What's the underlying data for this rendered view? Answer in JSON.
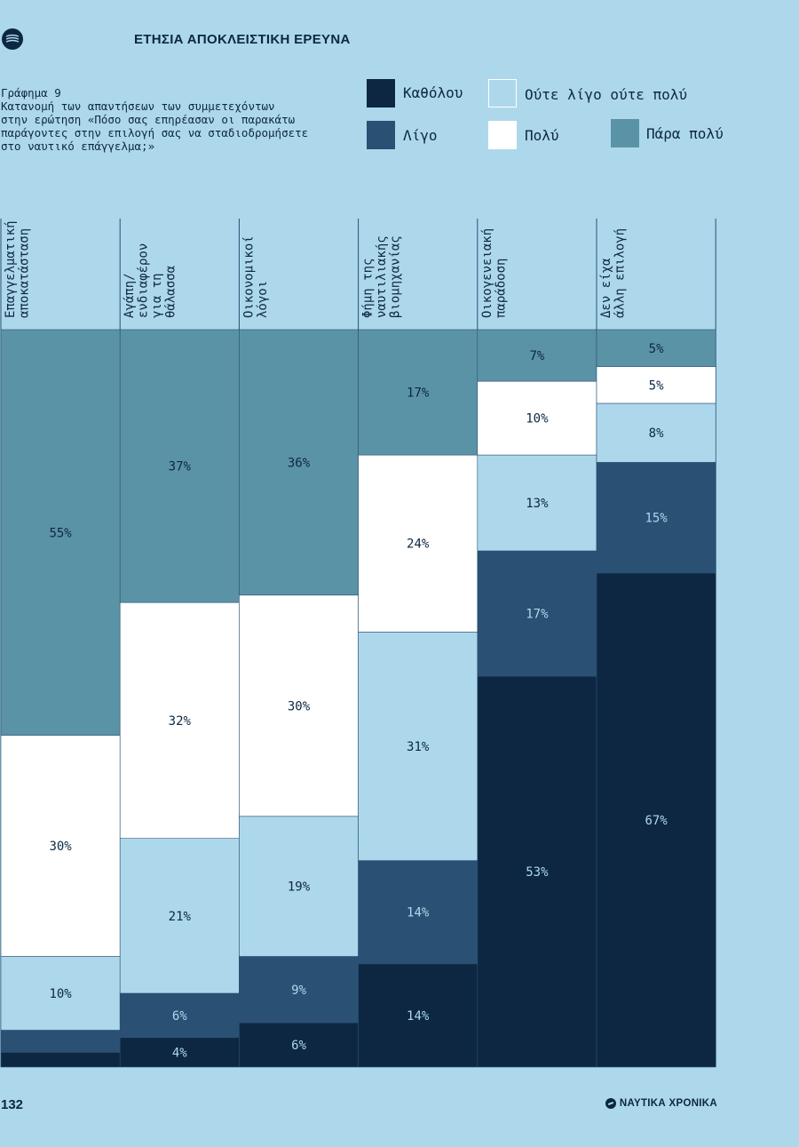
{
  "header": {
    "title": "ΕΤΗΣΙΑ ΑΠΟΚΛΕΙΣΤΙΚΗ ΕΡΕΥΝΑ",
    "logo_icon": "ship-wave-logo-icon"
  },
  "caption": {
    "figure_label": "Γράφημα 9",
    "text": "Κατανομή των απαντήσεων των συμμετεχόντων\nστην ερώτηση «Πόσο σας επηρέασαν οι παρακάτω\nπαράγοντες στην επιλογή σας να σταδιοδρομήσετε\nστο ναυτικό επάγγελμα;»"
  },
  "legend": [
    {
      "label": "Καθόλου",
      "color": "#0d2742"
    },
    {
      "label": "Λίγο",
      "color": "#2a5173"
    },
    {
      "label": "Ούτε λίγο ούτε πολύ",
      "color": "#add8ec"
    },
    {
      "label": "Πολύ",
      "color": "#ffffff"
    },
    {
      "label": "Πάρα πολύ",
      "color": "#5b93a6"
    }
  ],
  "chart_data": {
    "type": "bar",
    "stacked": true,
    "percent": true,
    "title": "Γράφημα 9",
    "categories": [
      "Επαγγελματική\nαποκατάσταση",
      "Αγάπη/\nενδιαφέρον\nγια τη\nθάλασσα",
      "Οικονομικοί\nλόγοι",
      "Φήμη της\nναυτιλιακής\nβιομηχανίας",
      "Οικογενειακή\nπαράδοση",
      "Δεν είχα\nάλλη επιλογή"
    ],
    "series": [
      {
        "name": "Καθόλου",
        "color": "#0d2742",
        "values": [
          2,
          4,
          6,
          14,
          53,
          67
        ],
        "labels": [
          "",
          "4%",
          "6%",
          "14%",
          "53%",
          "67%"
        ]
      },
      {
        "name": "Λίγο",
        "color": "#2a5173",
        "values": [
          3,
          6,
          9,
          14,
          17,
          15
        ],
        "labels": [
          "",
          "6%",
          "9%",
          "14%",
          "17%",
          "15%"
        ]
      },
      {
        "name": "Ούτε λίγο ούτε πολύ",
        "color": "#add8ec",
        "values": [
          10,
          21,
          19,
          31,
          13,
          8
        ],
        "labels": [
          "10%",
          "21%",
          "19%",
          "31%",
          "13%",
          "8%"
        ]
      },
      {
        "name": "Πολύ",
        "color": "#ffffff",
        "values": [
          30,
          32,
          30,
          24,
          10,
          5
        ],
        "labels": [
          "30%",
          "32%",
          "30%",
          "24%",
          "10%",
          "5%"
        ]
      },
      {
        "name": "Πάρα πολύ",
        "color": "#5b93a6",
        "values": [
          55,
          37,
          36,
          17,
          7,
          5
        ],
        "labels": [
          "55%",
          "37%",
          "36%",
          "17%",
          "7%",
          "5%"
        ]
      }
    ],
    "ylim": [
      0,
      100
    ],
    "xlabel": "",
    "ylabel": ""
  },
  "footer": {
    "page_number": "132",
    "brand": "ΝΑΥΤΙΚΑ ΧΡΟΝΙΚΑ",
    "brand_icon": "ship-wave-logo-icon"
  }
}
